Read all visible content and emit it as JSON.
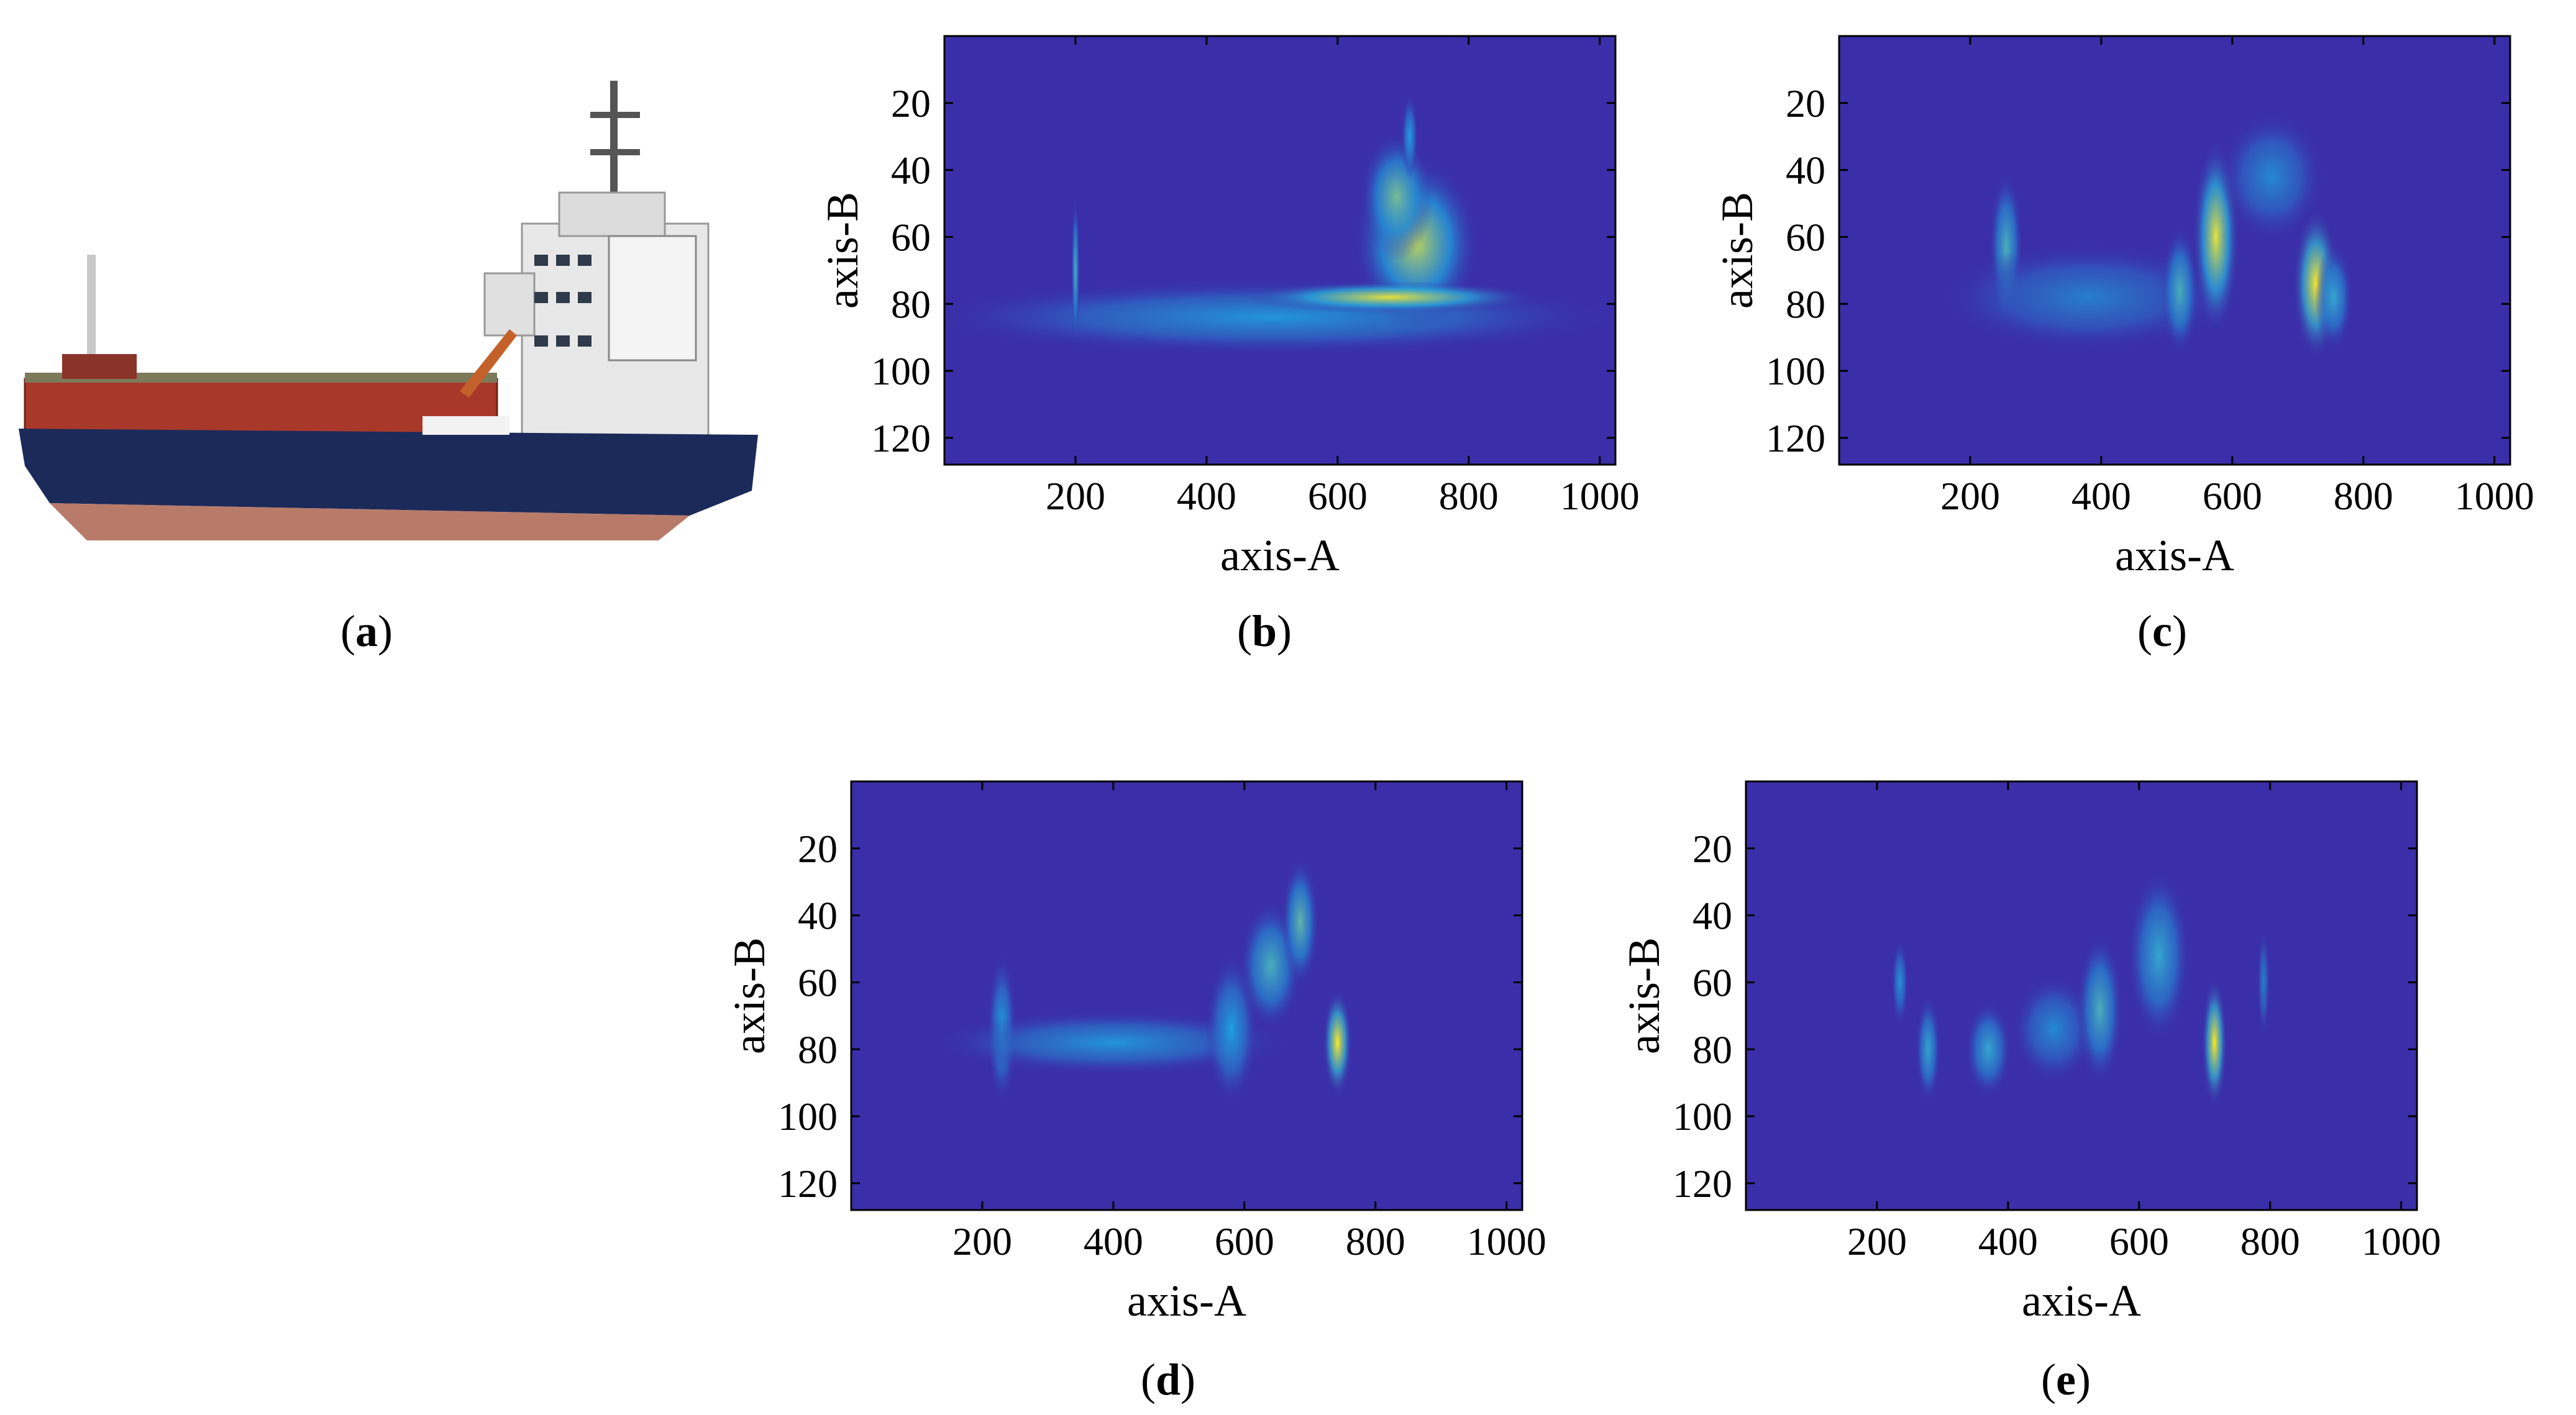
{
  "captions": {
    "a": "a",
    "b": "b",
    "c": "c",
    "d": "d",
    "e": "e"
  },
  "colors": {
    "background": "#3a2fa8",
    "frame": "#000000",
    "low": "#3a2fa8",
    "mid": "#1fa0e0",
    "high": "#fde725"
  },
  "chart_data": [
    {
      "panel": "b",
      "type": "heatmap",
      "xlabel": "axis-A",
      "ylabel": "axis-B",
      "xlim": [
        0,
        1024
      ],
      "ylim": [
        128,
        0
      ],
      "xticks": [
        "200",
        "400",
        "600",
        "800",
        "1000"
      ],
      "yticks": [
        "20",
        "40",
        "60",
        "80",
        "100",
        "120"
      ],
      "blobs": [
        {
          "x": 500,
          "y": 84,
          "sx": 330,
          "sy": 7,
          "v": 0.45
        },
        {
          "x": 200,
          "y": 70,
          "sx": 4,
          "sy": 14,
          "v": 0.6
        },
        {
          "x": 720,
          "y": 62,
          "sx": 60,
          "sy": 16,
          "v": 0.85
        },
        {
          "x": 690,
          "y": 48,
          "sx": 35,
          "sy": 12,
          "v": 0.7
        },
        {
          "x": 680,
          "y": 78,
          "sx": 140,
          "sy": 3,
          "v": 0.95
        },
        {
          "x": 710,
          "y": 30,
          "sx": 8,
          "sy": 8,
          "v": 0.5
        }
      ]
    },
    {
      "panel": "c",
      "type": "heatmap",
      "xlabel": "axis-A",
      "ylabel": "axis-B",
      "xlim": [
        0,
        1024
      ],
      "ylim": [
        128,
        0
      ],
      "xticks": [
        "200",
        "400",
        "600",
        "800",
        "1000"
      ],
      "yticks": [
        "20",
        "40",
        "60",
        "80",
        "100",
        "120"
      ],
      "blobs": [
        {
          "x": 255,
          "y": 63,
          "sx": 16,
          "sy": 14,
          "v": 0.6
        },
        {
          "x": 380,
          "y": 78,
          "sx": 140,
          "sy": 10,
          "v": 0.35
        },
        {
          "x": 520,
          "y": 76,
          "sx": 18,
          "sy": 12,
          "v": 0.6
        },
        {
          "x": 575,
          "y": 60,
          "sx": 22,
          "sy": 18,
          "v": 0.95
        },
        {
          "x": 660,
          "y": 42,
          "sx": 50,
          "sy": 12,
          "v": 0.4
        },
        {
          "x": 728,
          "y": 74,
          "sx": 22,
          "sy": 14,
          "v": 1.0
        },
        {
          "x": 755,
          "y": 78,
          "sx": 18,
          "sy": 10,
          "v": 0.55
        }
      ]
    },
    {
      "panel": "d",
      "type": "heatmap",
      "xlabel": "axis-A",
      "ylabel": "axis-B",
      "xlim": [
        0,
        1024
      ],
      "ylim": [
        128,
        0
      ],
      "xticks": [
        "200",
        "400",
        "600",
        "800",
        "1000"
      ],
      "yticks": [
        "20",
        "40",
        "60",
        "80",
        "100",
        "120"
      ],
      "blobs": [
        {
          "x": 230,
          "y": 74,
          "sx": 14,
          "sy": 14,
          "v": 0.5
        },
        {
          "x": 400,
          "y": 78,
          "sx": 170,
          "sy": 6,
          "v": 0.45
        },
        {
          "x": 580,
          "y": 74,
          "sx": 25,
          "sy": 14,
          "v": 0.5
        },
        {
          "x": 640,
          "y": 55,
          "sx": 30,
          "sy": 12,
          "v": 0.6
        },
        {
          "x": 685,
          "y": 42,
          "sx": 18,
          "sy": 12,
          "v": 0.65
        },
        {
          "x": 742,
          "y": 78,
          "sx": 14,
          "sy": 10,
          "v": 1.0
        }
      ]
    },
    {
      "panel": "e",
      "type": "heatmap",
      "xlabel": "axis-A",
      "ylabel": "axis-B",
      "xlim": [
        0,
        1024
      ],
      "ylim": [
        128,
        0
      ],
      "xticks": [
        "200",
        "400",
        "600",
        "800",
        "1000"
      ],
      "yticks": [
        "20",
        "40",
        "60",
        "80",
        "100",
        "120"
      ],
      "blobs": [
        {
          "x": 235,
          "y": 60,
          "sx": 8,
          "sy": 8,
          "v": 0.45
        },
        {
          "x": 278,
          "y": 80,
          "sx": 12,
          "sy": 10,
          "v": 0.55
        },
        {
          "x": 370,
          "y": 80,
          "sx": 22,
          "sy": 9,
          "v": 0.55
        },
        {
          "x": 470,
          "y": 74,
          "sx": 40,
          "sy": 10,
          "v": 0.4
        },
        {
          "x": 540,
          "y": 68,
          "sx": 22,
          "sy": 14,
          "v": 0.6
        },
        {
          "x": 630,
          "y": 52,
          "sx": 30,
          "sy": 16,
          "v": 0.55
        },
        {
          "x": 715,
          "y": 78,
          "sx": 12,
          "sy": 12,
          "v": 1.0
        },
        {
          "x": 790,
          "y": 60,
          "sx": 6,
          "sy": 10,
          "v": 0.35
        }
      ]
    }
  ]
}
